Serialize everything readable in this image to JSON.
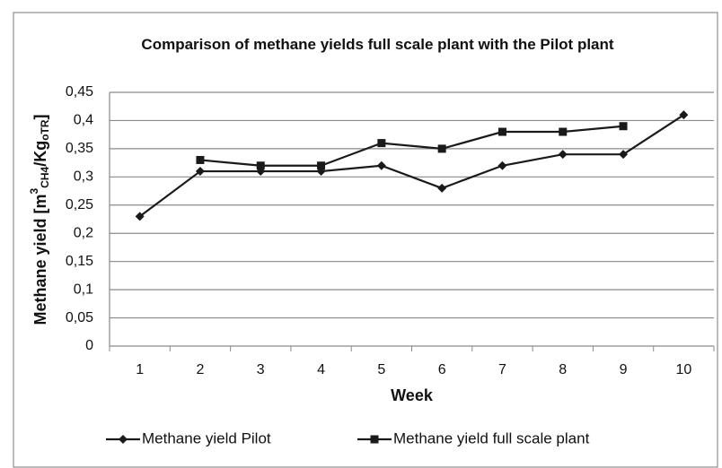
{
  "chart_data": {
    "type": "line",
    "title": "Comparison of methane yields full scale plant with the Pilot plant",
    "xlabel": "Week",
    "ylabel": [
      "Methane yield  [m",
      "3",
      "CH4",
      "/Kg",
      "oTR",
      "]"
    ],
    "categories": [
      "1",
      "2",
      "3",
      "4",
      "5",
      "6",
      "7",
      "8",
      "9",
      "10"
    ],
    "series": [
      {
        "name": "Methane yield Pilot",
        "color": "#1a1a1a",
        "marker": "diamond",
        "values": [
          0.23,
          0.31,
          0.31,
          0.31,
          0.32,
          0.28,
          0.32,
          0.34,
          0.34,
          0.41
        ]
      },
      {
        "name": "Methane yield full scale plant",
        "color": "#1a1a1a",
        "marker": "square",
        "values": [
          null,
          0.33,
          0.32,
          0.32,
          0.36,
          0.35,
          0.38,
          0.38,
          0.39,
          null
        ]
      }
    ],
    "ylim": [
      0,
      0.45
    ],
    "yticks": [
      0,
      {
        "value": 0.05,
        "label": "0,05"
      },
      {
        "value": 0.1,
        "label": "0,1"
      },
      {
        "value": 0.15,
        "label": "0,15"
      },
      {
        "value": 0.2,
        "label": "0,2"
      },
      {
        "value": 0.25,
        "label": "0,25"
      },
      {
        "value": 0.3,
        "label": "0,3"
      },
      {
        "value": 0.35,
        "label": "0,35"
      },
      {
        "value": 0.4,
        "label": "0,4"
      },
      {
        "value": 0.45,
        "label": "0,45"
      }
    ],
    "grid": true,
    "legend": "bottom"
  }
}
